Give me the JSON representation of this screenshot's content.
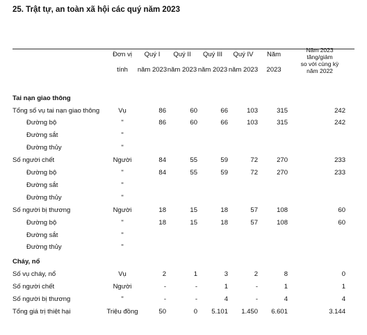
{
  "title": "25. Trật tự, an toàn xã hội các quý năm 2023",
  "header": [
    [
      "Đơn vị",
      "tính"
    ],
    [
      "Quý I",
      "năm 2023"
    ],
    [
      "Quý II",
      "năm 2023"
    ],
    [
      "Quý III",
      "năm 2023"
    ],
    [
      "Quý IV",
      "năm 2023"
    ],
    [
      "Năm",
      "2023"
    ],
    [
      "Năm 2023",
      "tăng/giảm",
      "so với cùng kỳ",
      "năm 2022"
    ]
  ],
  "groups": [
    {
      "section": "Tai nạn giao thông",
      "items": [
        {
          "label": "Tổng số vụ tai nạn giao thông",
          "cells": [
            "Vụ",
            "86",
            "60",
            "66",
            "103",
            "315",
            "242"
          ],
          "subs": [
            {
              "label": "Đường bộ",
              "cells": [
                "\"",
                "86",
                "60",
                "66",
                "103",
                "315",
                "242"
              ]
            },
            {
              "label": "Đường sắt",
              "cells": [
                "\""
              ]
            },
            {
              "label": "Đường thủy",
              "cells": [
                "\""
              ]
            }
          ]
        },
        {
          "label": "Số người chết",
          "cells": [
            "Người",
            "84",
            "55",
            "59",
            "72",
            "270",
            "233"
          ],
          "subs": [
            {
              "label": "Đường bộ",
              "cells": [
                "\"",
                "84",
                "55",
                "59",
                "72",
                "270",
                "233"
              ]
            },
            {
              "label": "Đường sắt",
              "cells": [
                "\""
              ]
            },
            {
              "label": "Đường thủy",
              "cells": [
                "\""
              ]
            }
          ]
        },
        {
          "label": "Số người bị thương",
          "cells": [
            "Người",
            "18",
            "15",
            "18",
            "57",
            "108",
            "60"
          ],
          "subs": [
            {
              "label": "Đường bộ",
              "cells": [
                "\"",
                "18",
                "15",
                "18",
                "57",
                "108",
                "60"
              ]
            },
            {
              "label": "Đường sắt",
              "cells": [
                "\""
              ]
            },
            {
              "label": "Đường thủy",
              "cells": [
                "\""
              ]
            }
          ]
        }
      ]
    },
    {
      "section": "Cháy, nổ",
      "items": [
        {
          "label": "Số vụ cháy, nổ",
          "cells": [
            "Vụ",
            "2",
            "1",
            "3",
            "2",
            "8",
            "0"
          ]
        },
        {
          "label": "Số người chết",
          "cells": [
            "Người",
            "-",
            "-",
            "1",
            "-",
            "1",
            "1"
          ]
        },
        {
          "label": "Số người bị thương",
          "cells": [
            "\"",
            "-",
            "-",
            "4",
            "-",
            "4",
            "4"
          ]
        },
        {
          "label": "Tổng giá trị thiệt hại",
          "cells": [
            "Triệu đồng",
            "50",
            "0",
            "5.101",
            "1.450",
            "6.601",
            "3.144"
          ]
        }
      ]
    }
  ]
}
